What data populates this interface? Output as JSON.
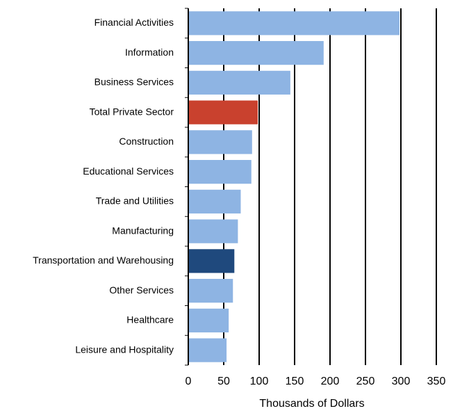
{
  "chart_data": {
    "type": "bar",
    "orientation": "horizontal",
    "x_label": "Thousands of Dollars",
    "categories": [
      "Financial Activities",
      "Information",
      "Business Services",
      "Total Private Sector",
      "Construction",
      "Educational Services",
      "Trade and Utilities",
      "Manufacturing",
      "Transportation and Warehousing",
      "Other Services",
      "Healthcare",
      "Leisure and Hospitality"
    ],
    "values": [
      298,
      191,
      144,
      98,
      90,
      89,
      74,
      70,
      65,
      63,
      57,
      54
    ],
    "colors": [
      "#8eb4e3",
      "#8eb4e3",
      "#8eb4e3",
      "#c9412e",
      "#8eb4e3",
      "#8eb4e3",
      "#8eb4e3",
      "#8eb4e3",
      "#1f497d",
      "#8eb4e3",
      "#8eb4e3",
      "#8eb4e3"
    ],
    "xlim": [
      0,
      350
    ],
    "xticks": [
      0,
      50,
      100,
      150,
      200,
      250,
      300,
      350
    ],
    "grid": true
  }
}
